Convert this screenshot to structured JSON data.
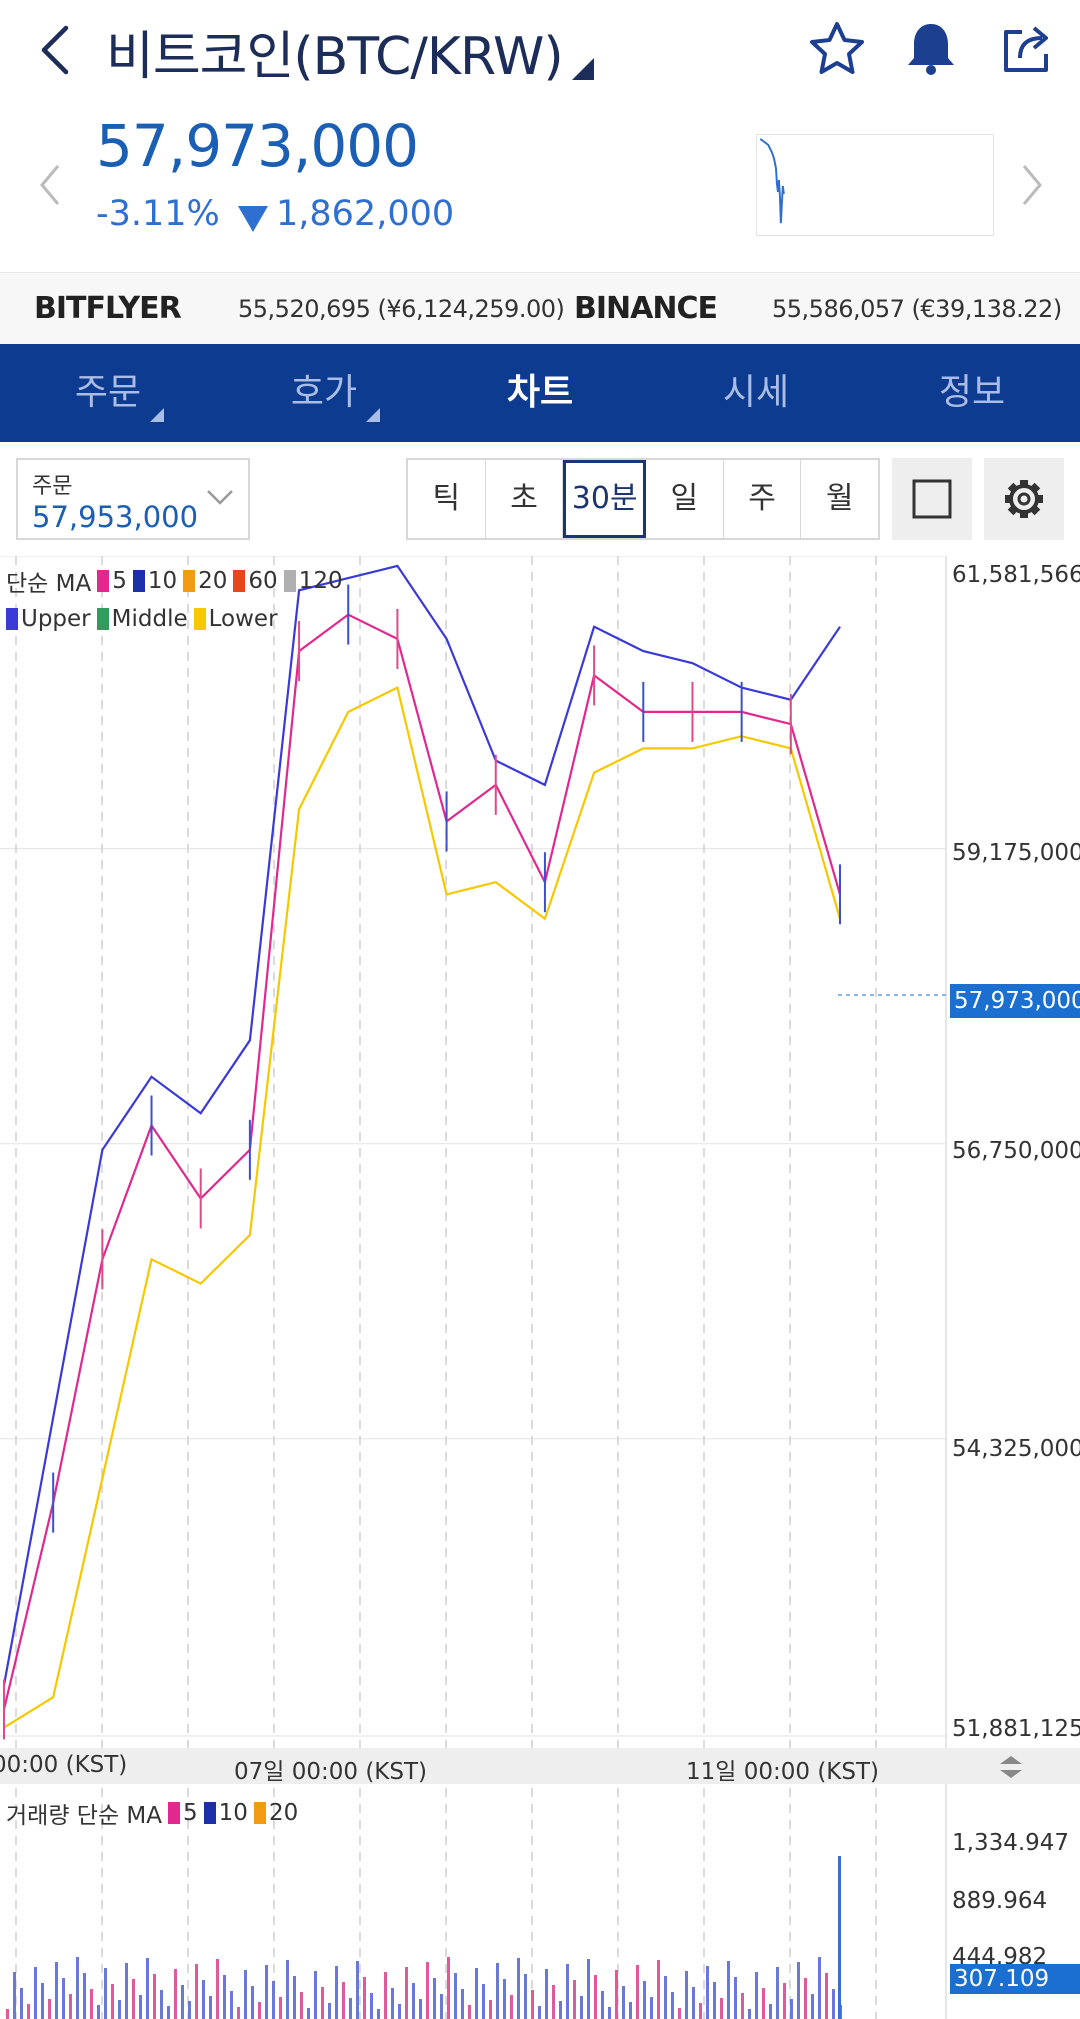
{
  "header": {
    "title": "비트코인(BTC/KRW)"
  },
  "price": {
    "current": "57,973,000",
    "change_pct": "-3.11%",
    "change_abs": "1,862,000"
  },
  "exchanges": [
    {
      "name": "BITFLYER",
      "value": "55,520,695 (¥6,124,259.00)"
    },
    {
      "name": "BINANCE",
      "value": "55,586,057 (€39,138.22)"
    }
  ],
  "tabs": [
    {
      "label": "주문",
      "active": false,
      "has_sub": true
    },
    {
      "label": "호가",
      "active": false,
      "has_sub": true
    },
    {
      "label": "차트",
      "active": true,
      "has_sub": false
    },
    {
      "label": "시세",
      "active": false,
      "has_sub": false
    },
    {
      "label": "정보",
      "active": false,
      "has_sub": false
    }
  ],
  "order_select": {
    "label": "주문",
    "value": "57,953,000"
  },
  "periods": [
    {
      "label": "틱",
      "active": false
    },
    {
      "label": "초",
      "active": false
    },
    {
      "label": "30분",
      "active": true
    },
    {
      "label": "일",
      "active": false
    },
    {
      "label": "주",
      "active": false
    },
    {
      "label": "월",
      "active": false
    }
  ],
  "colors": {
    "accent": "#0d3b8f",
    "price_down": "#1a5fb4",
    "ma5": "#e0288f",
    "ma10": "#1c2fa8",
    "ma20": "#f29a12",
    "ma60": "#e8461d",
    "ma120": "#b0b0b0",
    "upper": "#3a3ad8",
    "middle": "#2e9c5c",
    "lower": "#f5c800"
  },
  "legend": {
    "price_prefix": "단순 MA",
    "price_ma": [
      "5",
      "10",
      "20",
      "60",
      "120"
    ],
    "bands": [
      "Upper",
      "Middle",
      "Lower"
    ],
    "volume_prefix": "거래량 단순 MA",
    "volume_ma": [
      "5",
      "10",
      "20"
    ]
  },
  "chart_data": {
    "type": "line",
    "y_ticks": [
      "61,581,566",
      "59,175,000",
      "56,750,000",
      "54,325,000",
      "51,881,125"
    ],
    "current_label": "57,973,000",
    "x_labels": [
      "00:00 (KST)",
      "07일 00:00 (KST)",
      "11일 00:00 (KST)"
    ],
    "ylim": [
      51881125,
      61581566
    ],
    "series": [
      {
        "name": "5",
        "values": [
          52100000,
          53800000,
          55800000,
          56900000,
          56300000,
          56700000,
          60800000,
          61100000,
          60900000,
          59400000,
          59700000,
          58900000,
          60600000,
          60300000,
          60300000,
          60300000,
          60200000,
          58800000
        ]
      },
      {
        "name": "Upper",
        "values": [
          52300000,
          54500000,
          56700000,
          57300000,
          57000000,
          57600000,
          61300000,
          61400000,
          61500000,
          60900000,
          59900000,
          59700000,
          61000000,
          60800000,
          60700000,
          60500000,
          60400000,
          61000000
        ]
      },
      {
        "name": "Lower",
        "values": [
          51950000,
          52200000,
          54000000,
          55800000,
          55600000,
          56000000,
          59500000,
          60300000,
          60500000,
          58800000,
          58900000,
          58600000,
          59800000,
          60000000,
          60000000,
          60100000,
          60000000,
          58600000
        ]
      }
    ],
    "volume": {
      "y_ticks": [
        "1,334.947",
        "889.964",
        "444.982"
      ],
      "current_label": "307.109"
    }
  }
}
